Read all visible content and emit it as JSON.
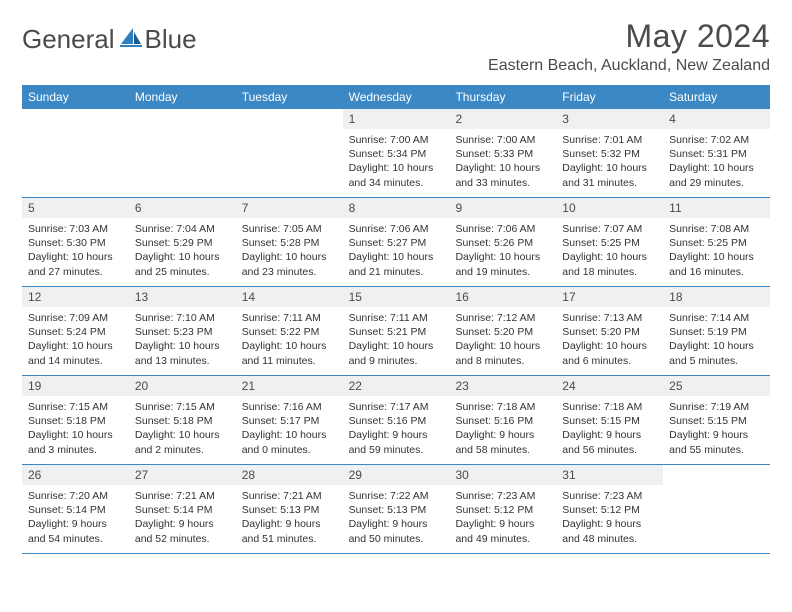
{
  "brand": {
    "part1": "General",
    "part2": "Blue"
  },
  "title": "May 2024",
  "location": "Eastern Beach, Auckland, New Zealand",
  "colors": {
    "headerBar": "#3b88c4",
    "dayNumBg": "#eef0f2",
    "text": "#4b4b4b",
    "logoBlue": "#2f7fbf"
  },
  "dayNames": [
    "Sunday",
    "Monday",
    "Tuesday",
    "Wednesday",
    "Thursday",
    "Friday",
    "Saturday"
  ],
  "weeks": [
    [
      null,
      null,
      null,
      {
        "n": "1",
        "sr": "7:00 AM",
        "ss": "5:34 PM",
        "dl": "10 hours and 34 minutes."
      },
      {
        "n": "2",
        "sr": "7:00 AM",
        "ss": "5:33 PM",
        "dl": "10 hours and 33 minutes."
      },
      {
        "n": "3",
        "sr": "7:01 AM",
        "ss": "5:32 PM",
        "dl": "10 hours and 31 minutes."
      },
      {
        "n": "4",
        "sr": "7:02 AM",
        "ss": "5:31 PM",
        "dl": "10 hours and 29 minutes."
      }
    ],
    [
      {
        "n": "5",
        "sr": "7:03 AM",
        "ss": "5:30 PM",
        "dl": "10 hours and 27 minutes."
      },
      {
        "n": "6",
        "sr": "7:04 AM",
        "ss": "5:29 PM",
        "dl": "10 hours and 25 minutes."
      },
      {
        "n": "7",
        "sr": "7:05 AM",
        "ss": "5:28 PM",
        "dl": "10 hours and 23 minutes."
      },
      {
        "n": "8",
        "sr": "7:06 AM",
        "ss": "5:27 PM",
        "dl": "10 hours and 21 minutes."
      },
      {
        "n": "9",
        "sr": "7:06 AM",
        "ss": "5:26 PM",
        "dl": "10 hours and 19 minutes."
      },
      {
        "n": "10",
        "sr": "7:07 AM",
        "ss": "5:25 PM",
        "dl": "10 hours and 18 minutes."
      },
      {
        "n": "11",
        "sr": "7:08 AM",
        "ss": "5:25 PM",
        "dl": "10 hours and 16 minutes."
      }
    ],
    [
      {
        "n": "12",
        "sr": "7:09 AM",
        "ss": "5:24 PM",
        "dl": "10 hours and 14 minutes."
      },
      {
        "n": "13",
        "sr": "7:10 AM",
        "ss": "5:23 PM",
        "dl": "10 hours and 13 minutes."
      },
      {
        "n": "14",
        "sr": "7:11 AM",
        "ss": "5:22 PM",
        "dl": "10 hours and 11 minutes."
      },
      {
        "n": "15",
        "sr": "7:11 AM",
        "ss": "5:21 PM",
        "dl": "10 hours and 9 minutes."
      },
      {
        "n": "16",
        "sr": "7:12 AM",
        "ss": "5:20 PM",
        "dl": "10 hours and 8 minutes."
      },
      {
        "n": "17",
        "sr": "7:13 AM",
        "ss": "5:20 PM",
        "dl": "10 hours and 6 minutes."
      },
      {
        "n": "18",
        "sr": "7:14 AM",
        "ss": "5:19 PM",
        "dl": "10 hours and 5 minutes."
      }
    ],
    [
      {
        "n": "19",
        "sr": "7:15 AM",
        "ss": "5:18 PM",
        "dl": "10 hours and 3 minutes."
      },
      {
        "n": "20",
        "sr": "7:15 AM",
        "ss": "5:18 PM",
        "dl": "10 hours and 2 minutes."
      },
      {
        "n": "21",
        "sr": "7:16 AM",
        "ss": "5:17 PM",
        "dl": "10 hours and 0 minutes."
      },
      {
        "n": "22",
        "sr": "7:17 AM",
        "ss": "5:16 PM",
        "dl": "9 hours and 59 minutes."
      },
      {
        "n": "23",
        "sr": "7:18 AM",
        "ss": "5:16 PM",
        "dl": "9 hours and 58 minutes."
      },
      {
        "n": "24",
        "sr": "7:18 AM",
        "ss": "5:15 PM",
        "dl": "9 hours and 56 minutes."
      },
      {
        "n": "25",
        "sr": "7:19 AM",
        "ss": "5:15 PM",
        "dl": "9 hours and 55 minutes."
      }
    ],
    [
      {
        "n": "26",
        "sr": "7:20 AM",
        "ss": "5:14 PM",
        "dl": "9 hours and 54 minutes."
      },
      {
        "n": "27",
        "sr": "7:21 AM",
        "ss": "5:14 PM",
        "dl": "9 hours and 52 minutes."
      },
      {
        "n": "28",
        "sr": "7:21 AM",
        "ss": "5:13 PM",
        "dl": "9 hours and 51 minutes."
      },
      {
        "n": "29",
        "sr": "7:22 AM",
        "ss": "5:13 PM",
        "dl": "9 hours and 50 minutes."
      },
      {
        "n": "30",
        "sr": "7:23 AM",
        "ss": "5:12 PM",
        "dl": "9 hours and 49 minutes."
      },
      {
        "n": "31",
        "sr": "7:23 AM",
        "ss": "5:12 PM",
        "dl": "9 hours and 48 minutes."
      },
      null
    ]
  ]
}
